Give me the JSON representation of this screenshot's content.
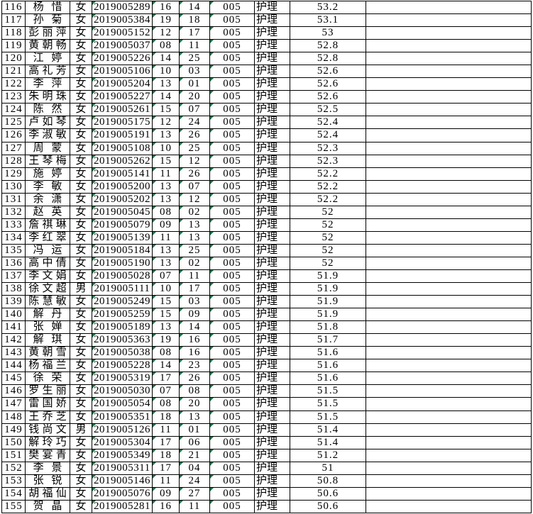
{
  "colors": {
    "grid": "#000000",
    "background": "#ffffff",
    "text": "#000000",
    "indicator_green": "#1e7145"
  },
  "icons": {
    "indicator": "number-stored-as-text-indicator"
  },
  "table": {
    "rows": [
      {
        "num": "116",
        "name": "杨惜",
        "gender": "女",
        "id": "2019005289",
        "n1": "16",
        "n2": "14",
        "code": "005",
        "job": "护理",
        "score": "53.2"
      },
      {
        "num": "117",
        "name": "孙菊",
        "gender": "女",
        "id": "2019005384",
        "n1": "19",
        "n2": "18",
        "code": "005",
        "job": "护理",
        "score": "53.1"
      },
      {
        "num": "118",
        "name": "彭丽萍",
        "gender": "女",
        "id": "2019005152",
        "n1": "12",
        "n2": "17",
        "code": "005",
        "job": "护理",
        "score": "53"
      },
      {
        "num": "119",
        "name": "黄朝畅",
        "gender": "女",
        "id": "2019005037",
        "n1": "08",
        "n2": "11",
        "code": "005",
        "job": "护理",
        "score": "52.8"
      },
      {
        "num": "120",
        "name": "江婷",
        "gender": "女",
        "id": "2019005226",
        "n1": "14",
        "n2": "25",
        "code": "005",
        "job": "护理",
        "score": "52.8"
      },
      {
        "num": "121",
        "name": "高礼芳",
        "gender": "女",
        "id": "2019005106",
        "n1": "10",
        "n2": "03",
        "code": "005",
        "job": "护理",
        "score": "52.6"
      },
      {
        "num": "122",
        "name": "李萍",
        "gender": "女",
        "id": "2019005204",
        "n1": "13",
        "n2": "01",
        "code": "005",
        "job": "护理",
        "score": "52.6"
      },
      {
        "num": "123",
        "name": "朱明珠",
        "gender": "女",
        "id": "2019005227",
        "n1": "14",
        "n2": "20",
        "code": "005",
        "job": "护理",
        "score": "52.6"
      },
      {
        "num": "124",
        "name": "陈然",
        "gender": "女",
        "id": "2019005261",
        "n1": "15",
        "n2": "07",
        "code": "005",
        "job": "护理",
        "score": "52.5"
      },
      {
        "num": "125",
        "name": "卢如琴",
        "gender": "女",
        "id": "2019005175",
        "n1": "12",
        "n2": "24",
        "code": "005",
        "job": "护理",
        "score": "52.4"
      },
      {
        "num": "126",
        "name": "李淑敏",
        "gender": "女",
        "id": "2019005191",
        "n1": "13",
        "n2": "26",
        "code": "005",
        "job": "护理",
        "score": "52.4"
      },
      {
        "num": "127",
        "name": "周蒙",
        "gender": "女",
        "id": "2019005108",
        "n1": "10",
        "n2": "25",
        "code": "005",
        "job": "护理",
        "score": "52.3"
      },
      {
        "num": "128",
        "name": "王琴梅",
        "gender": "女",
        "id": "2019005262",
        "n1": "15",
        "n2": "12",
        "code": "005",
        "job": "护理",
        "score": "52.3"
      },
      {
        "num": "129",
        "name": "施婷",
        "gender": "女",
        "id": "2019005141",
        "n1": "11",
        "n2": "26",
        "code": "005",
        "job": "护理",
        "score": "52.2"
      },
      {
        "num": "130",
        "name": "李敏",
        "gender": "女",
        "id": "2019005200",
        "n1": "13",
        "n2": "07",
        "code": "005",
        "job": "护理",
        "score": "52.2"
      },
      {
        "num": "131",
        "name": "余潇",
        "gender": "女",
        "id": "2019005202",
        "n1": "13",
        "n2": "12",
        "code": "005",
        "job": "护理",
        "score": "52.2"
      },
      {
        "num": "132",
        "name": "赵英",
        "gender": "女",
        "id": "2019005045",
        "n1": "08",
        "n2": "02",
        "code": "005",
        "job": "护理",
        "score": "52"
      },
      {
        "num": "133",
        "name": "詹祺琳",
        "gender": "女",
        "id": "2019005079",
        "n1": "09",
        "n2": "13",
        "code": "005",
        "job": "护理",
        "score": "52"
      },
      {
        "num": "134",
        "name": "李红翠",
        "gender": "女",
        "id": "2019005139",
        "n1": "11",
        "n2": "13",
        "code": "005",
        "job": "护理",
        "score": "52"
      },
      {
        "num": "135",
        "name": "冯运",
        "gender": "女",
        "id": "2019005184",
        "n1": "13",
        "n2": "25",
        "code": "005",
        "job": "护理",
        "score": "52"
      },
      {
        "num": "136",
        "name": "高中倩",
        "gender": "女",
        "id": "2019005190",
        "n1": "13",
        "n2": "02",
        "code": "005",
        "job": "护理",
        "score": "52"
      },
      {
        "num": "137",
        "name": "李文娟",
        "gender": "女",
        "id": "2019005028",
        "n1": "07",
        "n2": "11",
        "code": "005",
        "job": "护理",
        "score": "51.9"
      },
      {
        "num": "138",
        "name": "徐文超",
        "gender": "男",
        "id": "2019005111",
        "n1": "10",
        "n2": "17",
        "code": "005",
        "job": "护理",
        "score": "51.9"
      },
      {
        "num": "139",
        "name": "陈慧敏",
        "gender": "女",
        "id": "2019005249",
        "n1": "15",
        "n2": "03",
        "code": "005",
        "job": "护理",
        "score": "51.9"
      },
      {
        "num": "140",
        "name": "解丹",
        "gender": "女",
        "id": "2019005259",
        "n1": "15",
        "n2": "09",
        "code": "005",
        "job": "护理",
        "score": "51.9"
      },
      {
        "num": "141",
        "name": "张婵",
        "gender": "女",
        "id": "2019005189",
        "n1": "13",
        "n2": "14",
        "code": "005",
        "job": "护理",
        "score": "51.8"
      },
      {
        "num": "142",
        "name": "解琪",
        "gender": "女",
        "id": "2019005363",
        "n1": "19",
        "n2": "16",
        "code": "005",
        "job": "护理",
        "score": "51.7"
      },
      {
        "num": "143",
        "name": "黄朝雪",
        "gender": "女",
        "id": "2019005038",
        "n1": "08",
        "n2": "16",
        "code": "005",
        "job": "护理",
        "score": "51.6"
      },
      {
        "num": "144",
        "name": "杨福兰",
        "gender": "女",
        "id": "2019005228",
        "n1": "14",
        "n2": "23",
        "code": "005",
        "job": "护理",
        "score": "51.6"
      },
      {
        "num": "145",
        "name": "徐荣",
        "gender": "女",
        "id": "2019005319",
        "n1": "17",
        "n2": "26",
        "code": "005",
        "job": "护理",
        "score": "51.6"
      },
      {
        "num": "146",
        "name": "罗生丽",
        "gender": "女",
        "id": "2019005030",
        "n1": "07",
        "n2": "08",
        "code": "005",
        "job": "护理",
        "score": "51.5"
      },
      {
        "num": "147",
        "name": "雷国娇",
        "gender": "女",
        "id": "2019005054",
        "n1": "08",
        "n2": "20",
        "code": "005",
        "job": "护理",
        "score": "51.5"
      },
      {
        "num": "148",
        "name": "王乔芝",
        "gender": "女",
        "id": "2019005351",
        "n1": "18",
        "n2": "13",
        "code": "005",
        "job": "护理",
        "score": "51.5"
      },
      {
        "num": "149",
        "name": "钱尚文",
        "gender": "男",
        "id": "2019005126",
        "n1": "11",
        "n2": "01",
        "code": "005",
        "job": "护理",
        "score": "51.4"
      },
      {
        "num": "150",
        "name": "解玲巧",
        "gender": "女",
        "id": "2019005304",
        "n1": "17",
        "n2": "06",
        "code": "005",
        "job": "护理",
        "score": "51.4"
      },
      {
        "num": "151",
        "name": "樊宴青",
        "gender": "女",
        "id": "2019005349",
        "n1": "18",
        "n2": "21",
        "code": "005",
        "job": "护理",
        "score": "51.2"
      },
      {
        "num": "152",
        "name": "李景",
        "gender": "女",
        "id": "2019005311",
        "n1": "17",
        "n2": "04",
        "code": "005",
        "job": "护理",
        "score": "51"
      },
      {
        "num": "153",
        "name": "张锐",
        "gender": "女",
        "id": "2019005146",
        "n1": "11",
        "n2": "24",
        "code": "005",
        "job": "护理",
        "score": "50.8"
      },
      {
        "num": "154",
        "name": "胡福仙",
        "gender": "女",
        "id": "2019005076",
        "n1": "09",
        "n2": "27",
        "code": "005",
        "job": "护理",
        "score": "50.6"
      },
      {
        "num": "155",
        "name": "贺晶",
        "gender": "女",
        "id": "2019005281",
        "n1": "16",
        "n2": "11",
        "code": "005",
        "job": "护理",
        "score": "50.6"
      }
    ]
  }
}
